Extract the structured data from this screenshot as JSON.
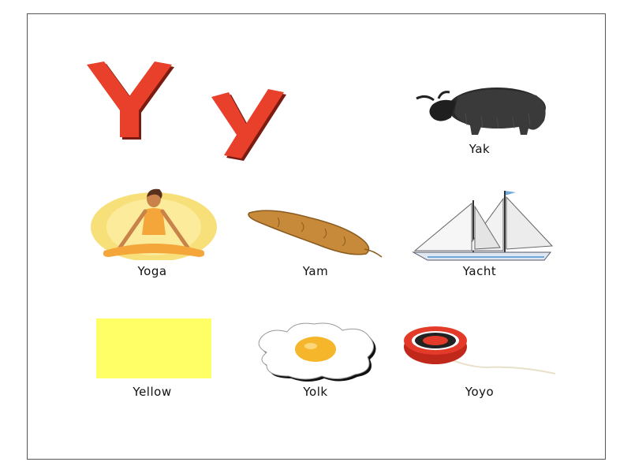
{
  "letters": {
    "upper": "Y",
    "lower": "y"
  },
  "colors": {
    "letter": "#e8402a",
    "swatch": "#ffff66",
    "yolk": "#f5b62c",
    "yam": "#c78a3a"
  },
  "items": [
    {
      "label": "Yak",
      "icon": "yak-icon"
    },
    {
      "label": "Yoga",
      "icon": "yoga-icon"
    },
    {
      "label": "Yam",
      "icon": "yam-icon"
    },
    {
      "label": "Yacht",
      "icon": "yacht-icon"
    },
    {
      "label": "Yellow",
      "icon": "yellow-swatch"
    },
    {
      "label": "Yolk",
      "icon": "egg-icon"
    },
    {
      "label": "Yoyo",
      "icon": "yoyo-icon"
    }
  ]
}
